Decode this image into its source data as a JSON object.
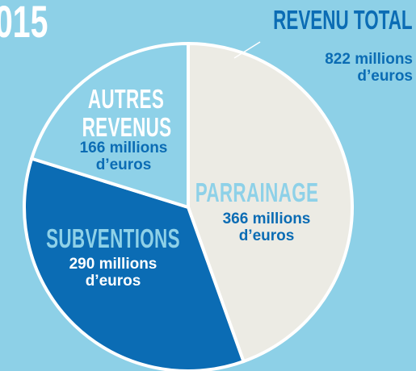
{
  "chart_data": {
    "type": "pie",
    "title": "015",
    "categories": [
      "PARRAINAGE",
      "SUBVENTIONS",
      "AUTRES REVENUS"
    ],
    "values": [
      366,
      290,
      166
    ],
    "value_labels": [
      "366 millions d’euros",
      "290 millions d’euros",
      "166 millions d’euros"
    ],
    "colors": [
      "#ecebe4",
      "#0b6cb4",
      "#8ed1e8"
    ],
    "total": {
      "label": "REVENU TOTAL",
      "value": 822,
      "value_label": "822 millions d’euros"
    }
  }
}
